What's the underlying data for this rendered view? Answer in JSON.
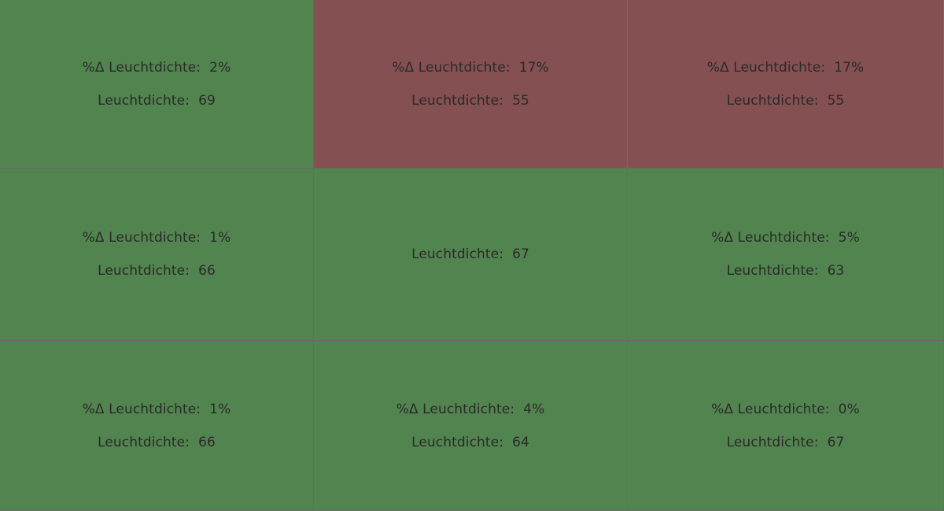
{
  "colors": {
    "ok": "#52844f",
    "bad": "#845052",
    "grid_line": "#6a6a6a",
    "text": "#2a2a2a"
  },
  "cells": [
    {
      "status": "ok",
      "delta_label": "%Δ Leuchtdichte:",
      "delta_value": "2%",
      "lum_label": "Leuchtdichte:",
      "lum_value": "69"
    },
    {
      "status": "bad",
      "delta_label": "%Δ Leuchtdichte:",
      "delta_value": "17%",
      "lum_label": "Leuchtdichte:",
      "lum_value": "55"
    },
    {
      "status": "bad",
      "delta_label": "%Δ Leuchtdichte:",
      "delta_value": "17%",
      "lum_label": "Leuchtdichte:",
      "lum_value": "55"
    },
    {
      "status": "ok",
      "delta_label": "%Δ Leuchtdichte:",
      "delta_value": "1%",
      "lum_label": "Leuchtdichte:",
      "lum_value": "66"
    },
    {
      "status": "ok",
      "delta_label": null,
      "delta_value": null,
      "lum_label": "Leuchtdichte:",
      "lum_value": "67"
    },
    {
      "status": "ok",
      "delta_label": "%Δ Leuchtdichte:",
      "delta_value": "5%",
      "lum_label": "Leuchtdichte:",
      "lum_value": "63"
    },
    {
      "status": "ok",
      "delta_label": "%Δ Leuchtdichte:",
      "delta_value": "1%",
      "lum_label": "Leuchtdichte:",
      "lum_value": "66"
    },
    {
      "status": "ok",
      "delta_label": "%Δ Leuchtdichte:",
      "delta_value": "4%",
      "lum_label": "Leuchtdichte:",
      "lum_value": "64"
    },
    {
      "status": "ok",
      "delta_label": "%Δ Leuchtdichte:",
      "delta_value": "0%",
      "lum_label": "Leuchtdichte:",
      "lum_value": "67"
    }
  ]
}
